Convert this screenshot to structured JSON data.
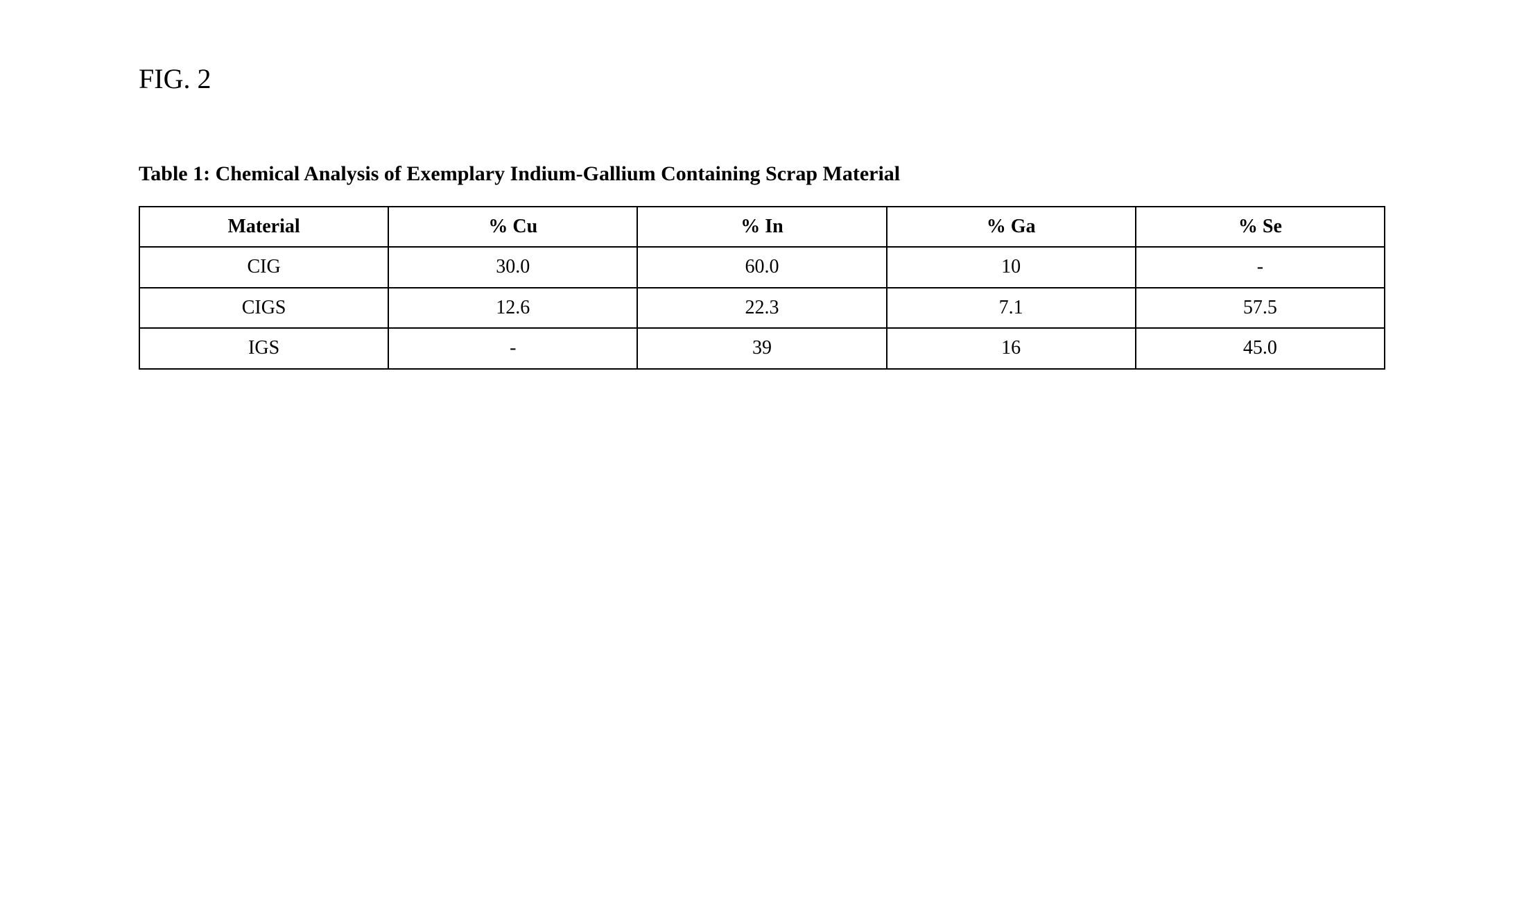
{
  "figure_label": "FIG. 2",
  "caption": "Table 1: Chemical Analysis of Exemplary Indium-Gallium Containing Scrap Material",
  "table": {
    "columns": [
      "Material",
      "% Cu",
      "% In",
      "% Ga",
      "% Se"
    ],
    "rows": [
      [
        "CIG",
        "30.0",
        "60.0",
        "10",
        "-"
      ],
      [
        "CIGS",
        "12.6",
        "22.3",
        "7.1",
        "57.5"
      ],
      [
        "IGS",
        "-",
        "39",
        "16",
        "45.0"
      ]
    ],
    "border_color": "#000000",
    "background_color": "#ffffff",
    "text_color": "#000000",
    "header_fontweight": "bold",
    "cell_fontweight": "normal",
    "fontsize_header": 28,
    "fontsize_cell": 28,
    "column_widths_pct": [
      20,
      20,
      20,
      20,
      20
    ]
  },
  "typography": {
    "font_family": "Times New Roman",
    "figure_label_fontsize": 40,
    "caption_fontsize": 30,
    "caption_fontweight": "bold"
  }
}
